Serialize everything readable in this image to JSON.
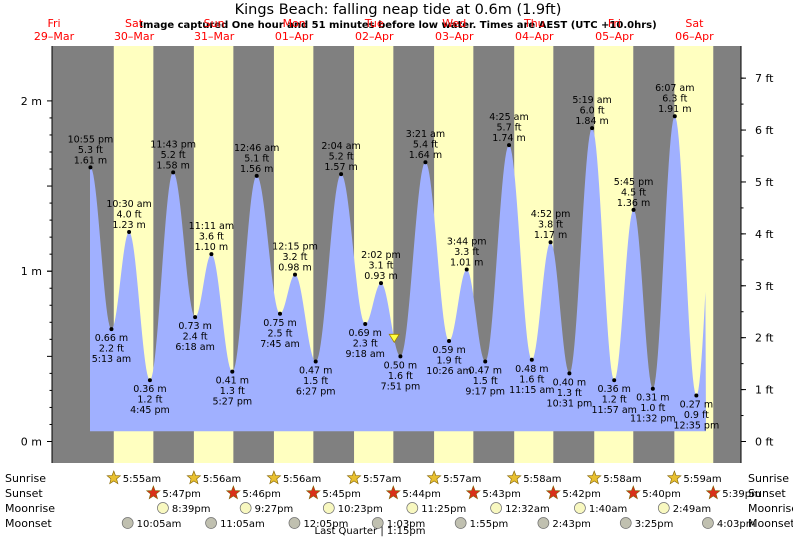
{
  "chart_data": {
    "type": "area",
    "title": "Kings Beach: falling  neap tide at 0.6m (1.9ft)",
    "subtitle": "Image captured One hour and 51 minutes before low water. Times are AEST (UTC +10.0hrs)",
    "y_left_ticks": [
      "0 m",
      "1 m",
      "2 m"
    ],
    "y_right_ticks": [
      "0 ft",
      "1 ft",
      "2 ft",
      "3 ft",
      "4 ft",
      "5 ft",
      "6 ft",
      "7 ft"
    ],
    "ylim_m": [
      -0.06,
      2.3
    ],
    "days": [
      {
        "dow": "Fri",
        "date": "29–Mar"
      },
      {
        "dow": "Sat",
        "date": "30–Mar"
      },
      {
        "dow": "Sun",
        "date": "31–Mar"
      },
      {
        "dow": "Mon",
        "date": "01–Apr"
      },
      {
        "dow": "Tue",
        "date": "02–Apr"
      },
      {
        "dow": "Wed",
        "date": "03–Apr"
      },
      {
        "dow": "Thu",
        "date": "04–Apr"
      },
      {
        "dow": "Fri",
        "date": "05–Apr"
      },
      {
        "dow": "Sat",
        "date": "06–Apr"
      }
    ],
    "tides": [
      {
        "day": 0,
        "hour": 22.917,
        "type": "high",
        "m": 1.61,
        "m_label": "1.61 m",
        "ft_label": "5.3 ft",
        "time": "10:55 pm"
      },
      {
        "day": 1,
        "hour": 5.217,
        "type": "low",
        "m": 0.66,
        "m_label": "0.66 m",
        "ft_label": "2.2 ft",
        "time": "5:13 am"
      },
      {
        "day": 1,
        "hour": 10.5,
        "type": "high",
        "m": 1.23,
        "m_label": "1.23 m",
        "ft_label": "4.0 ft",
        "time": "10:30 am"
      },
      {
        "day": 1,
        "hour": 16.75,
        "type": "low",
        "m": 0.36,
        "m_label": "0.36 m",
        "ft_label": "1.2 ft",
        "time": "4:45 pm"
      },
      {
        "day": 1,
        "hour": 23.717,
        "type": "high",
        "m": 1.58,
        "m_label": "1.58 m",
        "ft_label": "5.2 ft",
        "time": "11:43 pm"
      },
      {
        "day": 2,
        "hour": 6.3,
        "type": "low",
        "m": 0.73,
        "m_label": "0.73 m",
        "ft_label": "2.4 ft",
        "time": "6:18 am"
      },
      {
        "day": 2,
        "hour": 11.183,
        "type": "high",
        "m": 1.1,
        "m_label": "1.10 m",
        "ft_label": "3.6 ft",
        "time": "11:11 am"
      },
      {
        "day": 2,
        "hour": 17.45,
        "type": "low",
        "m": 0.41,
        "m_label": "0.41 m",
        "ft_label": "1.3 ft",
        "time": "5:27 pm"
      },
      {
        "day": 3,
        "hour": 0.767,
        "type": "high",
        "m": 1.56,
        "m_label": "1.56 m",
        "ft_label": "5.1 ft",
        "time": "12:46 am"
      },
      {
        "day": 3,
        "hour": 7.75,
        "type": "low",
        "m": 0.75,
        "m_label": "0.75 m",
        "ft_label": "2.5 ft",
        "time": "7:45 am"
      },
      {
        "day": 3,
        "hour": 12.25,
        "type": "high",
        "m": 0.98,
        "m_label": "0.98 m",
        "ft_label": "3.2 ft",
        "time": "12:15 pm"
      },
      {
        "day": 3,
        "hour": 18.45,
        "type": "low",
        "m": 0.47,
        "m_label": "0.47 m",
        "ft_label": "1.5 ft",
        "time": "6:27 pm"
      },
      {
        "day": 4,
        "hour": 2.067,
        "type": "high",
        "m": 1.57,
        "m_label": "1.57 m",
        "ft_label": "5.2 ft",
        "time": "2:04 am"
      },
      {
        "day": 4,
        "hour": 9.3,
        "type": "low",
        "m": 0.69,
        "m_label": "0.69 m",
        "ft_label": "2.3 ft",
        "time": "9:18 am"
      },
      {
        "day": 4,
        "hour": 14.033,
        "type": "high",
        "m": 0.93,
        "m_label": "0.93 m",
        "ft_label": "3.1 ft",
        "time": "2:02 pm"
      },
      {
        "day": 4,
        "hour": 19.85,
        "type": "low",
        "m": 0.5,
        "m_label": "0.50 m",
        "ft_label": "1.6 ft",
        "time": "7:51 pm"
      },
      {
        "day": 5,
        "hour": 3.35,
        "type": "high",
        "m": 1.64,
        "m_label": "1.64 m",
        "ft_label": "5.4 ft",
        "time": "3:21 am"
      },
      {
        "day": 5,
        "hour": 10.433,
        "type": "low",
        "m": 0.59,
        "m_label": "0.59 m",
        "ft_label": "1.9 ft",
        "time": "10:26 am"
      },
      {
        "day": 5,
        "hour": 15.733,
        "type": "high",
        "m": 1.01,
        "m_label": "1.01 m",
        "ft_label": "3.3 ft",
        "time": "3:44 pm"
      },
      {
        "day": 5,
        "hour": 21.283,
        "type": "low",
        "m": 0.47,
        "m_label": "0.47 m",
        "ft_label": "1.5 ft",
        "time": "9:17 pm"
      },
      {
        "day": 6,
        "hour": 4.417,
        "type": "high",
        "m": 1.74,
        "m_label": "1.74 m",
        "ft_label": "5.7 ft",
        "time": "4:25 am"
      },
      {
        "day": 6,
        "hour": 11.25,
        "type": "low",
        "m": 0.48,
        "m_label": "0.48 m",
        "ft_label": "1.6 ft",
        "time": "11:15 am"
      },
      {
        "day": 6,
        "hour": 16.867,
        "type": "high",
        "m": 1.17,
        "m_label": "1.17 m",
        "ft_label": "3.8 ft",
        "time": "4:52 pm"
      },
      {
        "day": 6,
        "hour": 22.517,
        "type": "low",
        "m": 0.4,
        "m_label": "0.40 m",
        "ft_label": "1.3 ft",
        "time": "10:31 pm"
      },
      {
        "day": 7,
        "hour": 5.317,
        "type": "high",
        "m": 1.84,
        "m_label": "1.84 m",
        "ft_label": "6.0 ft",
        "time": "5:19 am"
      },
      {
        "day": 7,
        "hour": 11.95,
        "type": "low",
        "m": 0.36,
        "m_label": "0.36 m",
        "ft_label": "1.2 ft",
        "time": "11:57 am"
      },
      {
        "day": 7,
        "hour": 17.75,
        "type": "high",
        "m": 1.36,
        "m_label": "1.36 m",
        "ft_label": "4.5 ft",
        "time": "5:45 pm"
      },
      {
        "day": 7,
        "hour": 23.533,
        "type": "low",
        "m": 0.31,
        "m_label": "0.31 m",
        "ft_label": "1.0 ft",
        "time": "11:32 pm"
      },
      {
        "day": 8,
        "hour": 6.117,
        "type": "high",
        "m": 1.91,
        "m_label": "1.91 m",
        "ft_label": "6.3 ft",
        "time": "6:07 am"
      },
      {
        "day": 8,
        "hour": 12.583,
        "type": "low",
        "m": 0.27,
        "m_label": "0.27 m",
        "ft_label": "0.9 ft",
        "time": "12:35 pm"
      }
    ],
    "now_marker": {
      "day": 4,
      "hour": 18.0,
      "m": 0.6
    },
    "daylight": [
      {
        "day": 1,
        "sunrise": "5:55am",
        "sunset": "5:47pm",
        "sunrise_h": 5.917,
        "sunset_h": 17.783
      },
      {
        "day": 2,
        "sunrise": "5:56am",
        "sunset": "5:46pm",
        "sunrise_h": 5.933,
        "sunset_h": 17.767
      },
      {
        "day": 3,
        "sunrise": "5:56am",
        "sunset": "5:45pm",
        "sunrise_h": 5.933,
        "sunset_h": 17.75
      },
      {
        "day": 4,
        "sunrise": "5:57am",
        "sunset": "5:44pm",
        "sunrise_h": 5.95,
        "sunset_h": 17.733
      },
      {
        "day": 5,
        "sunrise": "5:57am",
        "sunset": "5:43pm",
        "sunrise_h": 5.95,
        "sunset_h": 17.717
      },
      {
        "day": 6,
        "sunrise": "5:58am",
        "sunset": "5:42pm",
        "sunrise_h": 5.967,
        "sunset_h": 17.7
      },
      {
        "day": 7,
        "sunrise": "5:58am",
        "sunset": "5:40pm",
        "sunrise_h": 5.967,
        "sunset_h": 17.667
      },
      {
        "day": 8,
        "sunrise": "5:59am",
        "sunset": "5:39pm",
        "sunrise_h": 5.983,
        "sunset_h": 17.65
      }
    ],
    "moonrise": [
      {
        "day": 1,
        "hour": 20.65,
        "label": "8:39pm"
      },
      {
        "day": 2,
        "hour": 21.45,
        "label": "9:27pm"
      },
      {
        "day": 3,
        "hour": 22.383,
        "label": "10:23pm"
      },
      {
        "day": 4,
        "hour": 23.417,
        "label": "11:25pm"
      },
      {
        "day": 6,
        "hour": 0.533,
        "label": "12:32am"
      },
      {
        "day": 7,
        "hour": 1.667,
        "label": "1:40am"
      },
      {
        "day": 8,
        "hour": 2.817,
        "label": "2:49am"
      }
    ],
    "moonset": [
      {
        "day": 1,
        "hour": 10.083,
        "label": "10:05am"
      },
      {
        "day": 2,
        "hour": 11.083,
        "label": "11:05am"
      },
      {
        "day": 3,
        "hour": 12.083,
        "label": "12:05pm"
      },
      {
        "day": 4,
        "hour": 13.05,
        "label": "1:03pm"
      },
      {
        "day": 5,
        "hour": 13.917,
        "label": "1:55pm"
      },
      {
        "day": 6,
        "hour": 14.717,
        "label": "2:43pm"
      },
      {
        "day": 7,
        "hour": 15.417,
        "label": "3:25pm"
      },
      {
        "day": 8,
        "hour": 16.05,
        "label": "4:03pm"
      }
    ],
    "row_labels": {
      "sunrise": "Sunrise",
      "sunset": "Sunset",
      "moonrise": "Moonrise",
      "moonset": "Moonset"
    },
    "moon_phase": "Last Quarter | 1:15pm",
    "colors": {
      "night": "#808080",
      "day": "#ffffc0",
      "water": "#a0b0ff",
      "day_label": "#ff0000",
      "star_rise": "#e8c030",
      "star_set": "#d83018",
      "moonrise": "#f8f8c0",
      "moonset": "#c0c0b0"
    }
  }
}
